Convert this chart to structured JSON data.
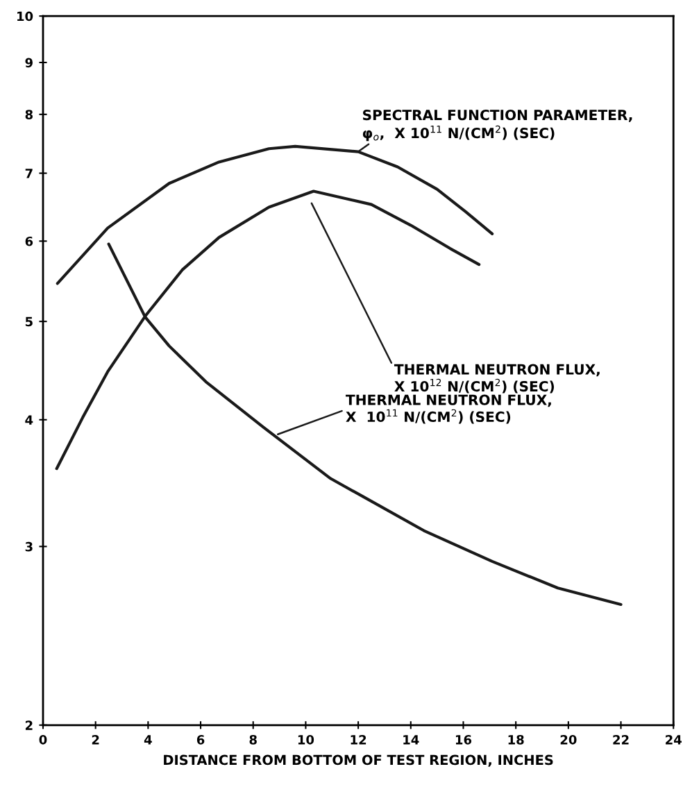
{
  "chart_data": {
    "type": "line",
    "xlabel": "DISTANCE FROM BOTTOM OF TEST REGION, INCHES",
    "log": "y",
    "xlim": [
      0,
      24
    ],
    "xticks": [
      0,
      2,
      4,
      6,
      8,
      10,
      12,
      14,
      16,
      18,
      20,
      22,
      24
    ],
    "ylim": [
      2,
      10
    ],
    "yticks": [
      2,
      3,
      4,
      5,
      6,
      7,
      8,
      9,
      10
    ],
    "grid": false,
    "legend": false,
    "marker": "none",
    "line_style": "solid",
    "series": [
      {
        "color": "#1a1a1a",
        "x": [
          0.55,
          2.46,
          4.8,
          6.7,
          8.6,
          9.6,
          12.0,
          13.5,
          15.0,
          16.1,
          17.1
        ],
        "values": [
          5.45,
          6.18,
          6.84,
          7.18,
          7.4,
          7.44,
          7.35,
          7.1,
          6.75,
          6.41,
          6.1
        ]
      },
      {
        "color": "#1a1a1a",
        "x": [
          0.52,
          1.51,
          2.46,
          3.89,
          5.3,
          6.7,
          8.6,
          10.3,
          12.5,
          14.0,
          15.5,
          16.6
        ],
        "values": [
          3.58,
          4.02,
          4.46,
          5.06,
          5.62,
          6.05,
          6.48,
          6.72,
          6.52,
          6.22,
          5.9,
          5.69
        ]
      },
      {
        "color": "#1a1a1a",
        "x": [
          2.5,
          3.89,
          4.8,
          6.2,
          8.4,
          10.95,
          12.0,
          14.5,
          17.1,
          19.6,
          22.0
        ],
        "values": [
          5.96,
          5.05,
          4.73,
          4.36,
          3.93,
          3.5,
          3.38,
          3.11,
          2.9,
          2.73,
          2.63
        ]
      }
    ],
    "annotations": [
      {
        "text": "SPECTRAL FUNCTION PARAMETER,\nφ$_{o}$,  X 10$^{11}$ N/(CM$^{2}$) (SEC)",
        "x": 12.0,
        "y": 7.35
      },
      "THERMAL NEUTRON FLUX,\nX 10$^{12}$ N/(CM$^{2}$) (SEC)",
      {
        "text": "THERMAL NEUTRON FLUX,\nX  10$^{11}$ N/(CM$^{2}$) (SEC)",
        "x": 8.94,
        "y": 3.87
      }
    ]
  }
}
